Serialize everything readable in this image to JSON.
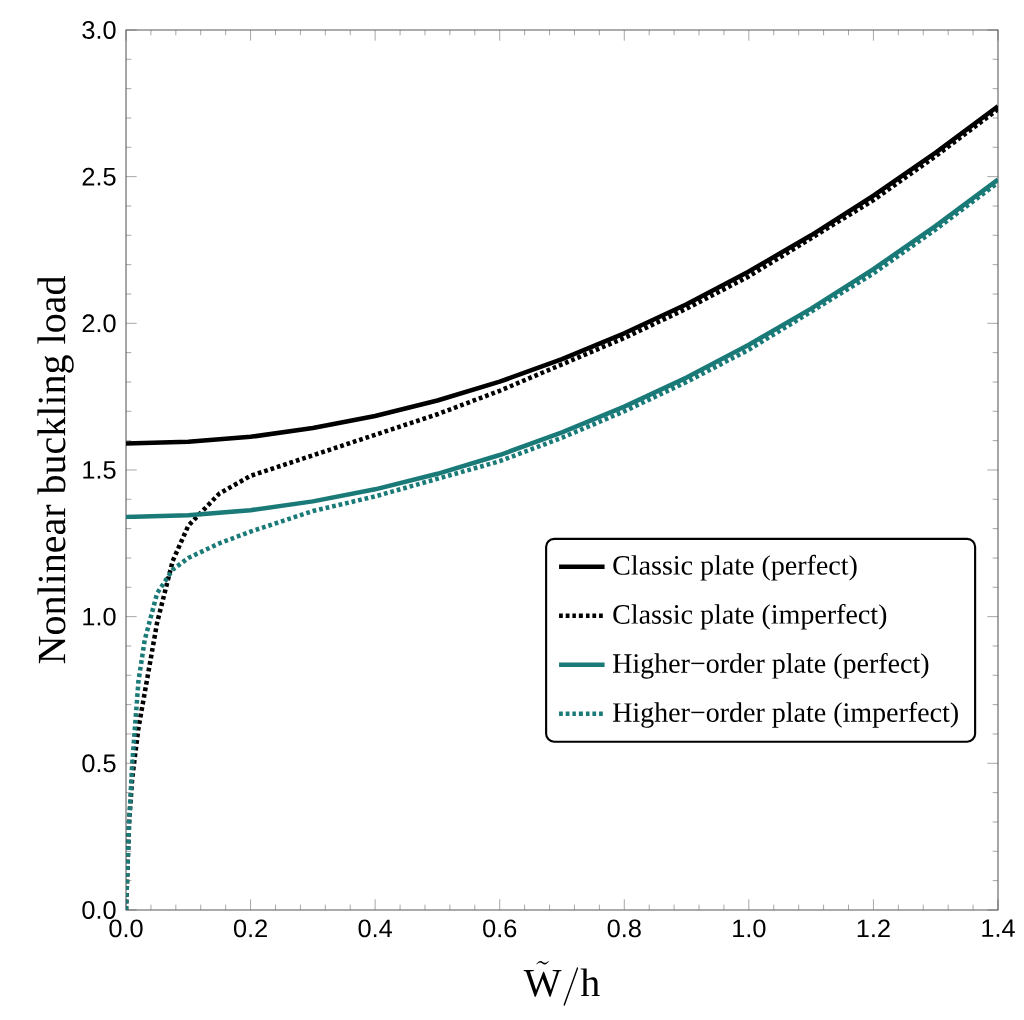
{
  "chart_data": {
    "type": "line",
    "xlabel": "\\tilde{\\mathrm{W}}/\\mathrm{h}",
    "ylabel": "Nonlinear buckling load",
    "xlim": [
      0,
      1.4
    ],
    "ylim": [
      0,
      3.0
    ],
    "xticks": [
      {
        "value": 0,
        "label": "0.0"
      },
      0.2,
      0.4,
      0.6,
      0.8,
      {
        "value": 1,
        "label": "1.0"
      },
      1.2,
      1.4
    ],
    "yticks": [
      {
        "value": 0,
        "label": "0.0"
      },
      0.5,
      {
        "value": 1,
        "label": "1.0"
      },
      1.5,
      {
        "value": 2,
        "label": "2.0"
      },
      2.5,
      {
        "value": 3,
        "label": "3.0"
      }
    ],
    "grid": false,
    "legend": "right",
    "marker": "none",
    "series": [
      {
        "name": "Classic plate (perfect)",
        "color": "#000000",
        "line_style": "solid",
        "x": [
          0,
          0.1,
          0.2,
          0.3,
          0.4,
          0.5,
          0.6,
          0.7,
          0.8,
          0.9,
          1.0,
          1.1,
          1.2,
          1.3,
          1.4
        ],
        "values": [
          1.59,
          1.596,
          1.613,
          1.643,
          1.684,
          1.737,
          1.801,
          1.878,
          1.966,
          2.065,
          2.177,
          2.3,
          2.435,
          2.582,
          2.74
        ]
      },
      {
        "name": "Classic plate (imperfect)",
        "color": "#000000",
        "line_style": "dotted",
        "x": [
          0,
          0.005,
          0.01,
          0.02,
          0.03,
          0.05,
          0.075,
          0.1,
          0.15,
          0.2,
          0.3,
          0.4,
          0.5,
          0.6,
          0.7,
          0.8,
          0.9,
          1.0,
          1.1,
          1.2,
          1.3,
          1.4
        ],
        "values": [
          0,
          0.3,
          0.45,
          0.62,
          0.74,
          0.98,
          1.19,
          1.31,
          1.42,
          1.48,
          1.55,
          1.62,
          1.69,
          1.77,
          1.86,
          1.95,
          2.05,
          2.16,
          2.29,
          2.42,
          2.57,
          2.73
        ]
      },
      {
        "name": "Higher−order plate (perfect)",
        "color": "#1a7a78",
        "line_style": "solid",
        "x": [
          0,
          0.1,
          0.2,
          0.3,
          0.4,
          0.5,
          0.6,
          0.7,
          0.8,
          0.9,
          1.0,
          1.1,
          1.2,
          1.3,
          1.4
        ],
        "values": [
          1.34,
          1.346,
          1.363,
          1.393,
          1.434,
          1.487,
          1.551,
          1.628,
          1.716,
          1.815,
          1.927,
          2.05,
          2.185,
          2.332,
          2.49
        ]
      },
      {
        "name": "Higher−order plate (imperfect)",
        "color": "#1a7a78",
        "line_style": "dotted",
        "x": [
          0,
          0.005,
          0.01,
          0.02,
          0.03,
          0.05,
          0.075,
          0.1,
          0.15,
          0.2,
          0.3,
          0.4,
          0.5,
          0.6,
          0.7,
          0.8,
          0.9,
          1.0,
          1.1,
          1.2,
          1.3,
          1.4
        ],
        "values": [
          0,
          0.3,
          0.5,
          0.78,
          0.92,
          1.08,
          1.16,
          1.2,
          1.25,
          1.29,
          1.36,
          1.41,
          1.47,
          1.53,
          1.61,
          1.7,
          1.8,
          1.91,
          2.04,
          2.17,
          2.32,
          2.48
        ]
      }
    ]
  }
}
